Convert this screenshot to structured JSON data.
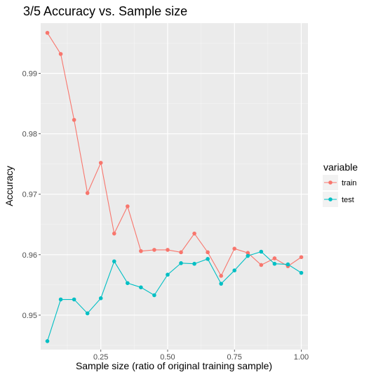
{
  "chart_data": {
    "type": "line",
    "title": "3/5 Accuracy vs. Sample size",
    "xlabel": "Sample size (ratio of original training sample)",
    "ylabel": "Accuracy",
    "xlim": [
      0.025,
      1.025
    ],
    "ylim": [
      0.9443,
      0.9983
    ],
    "x_ticks": [
      0.25,
      0.5,
      0.75,
      1.0
    ],
    "x_tick_labels": [
      "0.25",
      "0.50",
      "0.75",
      "1.00"
    ],
    "y_ticks": [
      0.95,
      0.96,
      0.97,
      0.98,
      0.99
    ],
    "y_tick_labels": [
      "0.95",
      "0.96",
      "0.97",
      "0.98",
      "0.99"
    ],
    "grid": true,
    "legend": {
      "title": "variable",
      "position": "right"
    },
    "x": [
      0.05,
      0.1,
      0.15,
      0.2,
      0.25,
      0.3,
      0.35,
      0.4,
      0.45,
      0.5,
      0.55,
      0.6,
      0.65,
      0.7,
      0.75,
      0.8,
      0.85,
      0.9,
      0.95,
      1.0
    ],
    "series": [
      {
        "name": "train",
        "color": "#F8766D",
        "values": [
          0.9967,
          0.9932,
          0.9823,
          0.9702,
          0.9752,
          0.9635,
          0.968,
          0.9606,
          0.9608,
          0.9608,
          0.9604,
          0.9635,
          0.9604,
          0.9565,
          0.961,
          0.9603,
          0.9583,
          0.9594,
          0.9581,
          0.9596
        ]
      },
      {
        "name": "test",
        "color": "#00BFC4",
        "values": [
          0.9457,
          0.9526,
          0.9526,
          0.9503,
          0.9528,
          0.9589,
          0.9553,
          0.9546,
          0.9533,
          0.9567,
          0.9586,
          0.9585,
          0.9593,
          0.9552,
          0.9574,
          0.9598,
          0.9605,
          0.9585,
          0.9584,
          0.957
        ]
      }
    ]
  }
}
